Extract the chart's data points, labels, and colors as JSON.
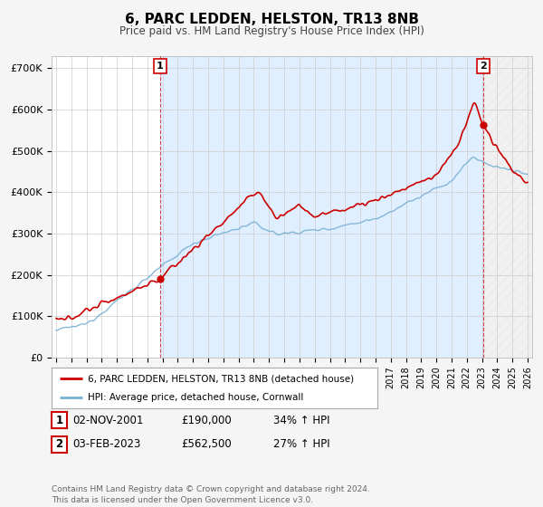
{
  "title": "6, PARC LEDDEN, HELSTON, TR13 8NB",
  "subtitle": "Price paid vs. HM Land Registry's House Price Index (HPI)",
  "ylabel_ticks": [
    "£0",
    "£100K",
    "£200K",
    "£300K",
    "£400K",
    "£500K",
    "£600K",
    "£700K"
  ],
  "ytick_vals": [
    0,
    100000,
    200000,
    300000,
    400000,
    500000,
    600000,
    700000
  ],
  "ylim": [
    0,
    730000
  ],
  "xlim_start": 1994.7,
  "xlim_end": 2026.3,
  "legend_label_red": "6, PARC LEDDEN, HELSTON, TR13 8NB (detached house)",
  "legend_label_blue": "HPI: Average price, detached house, Cornwall",
  "table_rows": [
    {
      "num": "1",
      "date": "02-NOV-2001",
      "price": "£190,000",
      "hpi": "34% ↑ HPI"
    },
    {
      "num": "2",
      "date": "03-FEB-2023",
      "price": "£562,500",
      "hpi": "27% ↑ HPI"
    }
  ],
  "footnote": "Contains HM Land Registry data © Crown copyright and database right 2024.\nThis data is licensed under the Open Government Licence v3.0.",
  "sale1_x": 2001.84,
  "sale1_y": 190000,
  "sale2_x": 2023.08,
  "sale2_y": 562500,
  "red_color": "#cc0000",
  "blue_color": "#7ab0d4",
  "shade_color": "#ddeeff",
  "bg_color": "#f5f5f5",
  "plot_bg": "#ffffff"
}
